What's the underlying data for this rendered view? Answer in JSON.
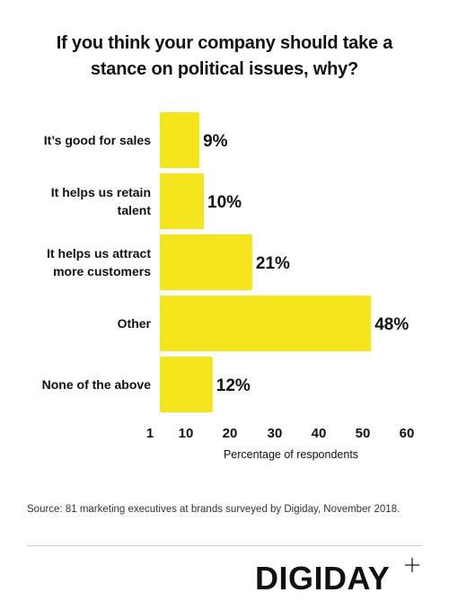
{
  "title_lines": [
    "If you think your company should take a",
    "stance on political issues, why?"
  ],
  "chart_data": {
    "type": "bar",
    "orientation": "horizontal",
    "categories": [
      [
        "It’s good for sales"
      ],
      [
        "It helps us retain",
        "talent"
      ],
      [
        "It helps us attract",
        "more customers"
      ],
      [
        "Other"
      ],
      [
        "None of the above"
      ]
    ],
    "values": [
      9,
      10,
      21,
      48,
      12
    ],
    "value_labels": [
      "9%",
      "10%",
      "21%",
      "48%",
      "12%"
    ],
    "xlabel": "Percentage of respondents",
    "xticks": [
      1,
      10,
      20,
      30,
      40,
      50,
      60
    ],
    "xlim": [
      1,
      60
    ],
    "bar_color": "#f5e51d",
    "grid": false
  },
  "source": "Source: 81 marketing executives at brands surveyed by Digiday, November 2018.",
  "brand": "DIGIDAY",
  "brand_mark": "plus-icon"
}
